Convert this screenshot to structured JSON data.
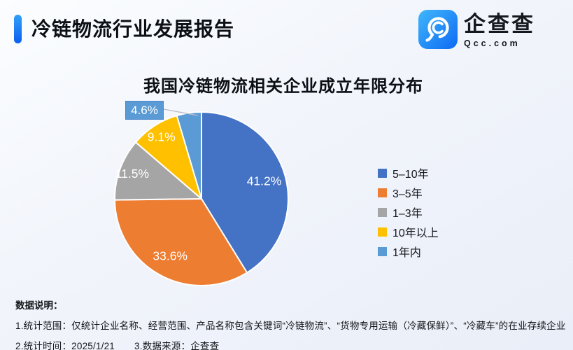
{
  "header": {
    "title": "冷链物流行业发展报告"
  },
  "logo": {
    "name": "企查查",
    "domain": "Qcc.com",
    "icon": "qcc-magnifier-icon",
    "brand_color": "#1275f5"
  },
  "chart_data": {
    "type": "pie",
    "title": "我国冷链物流相关企业成立年限分布",
    "legend_position": "right",
    "data_label_format": "{value}%",
    "start_angle_deg": 0,
    "direction": "clockwise",
    "slice_border_color": "#ffffff",
    "slices": [
      {
        "label": "5–10年",
        "value": 41.2,
        "color": "#4472C4"
      },
      {
        "label": "3–5年",
        "value": 33.6,
        "color": "#ED7D31"
      },
      {
        "label": "1–3年",
        "value": 11.5,
        "color": "#A5A5A5"
      },
      {
        "label": "10年以上",
        "value": 9.1,
        "color": "#FFC000"
      },
      {
        "label": "1年内",
        "value": 4.6,
        "color": "#5B9BD5",
        "callout": true
      }
    ]
  },
  "footer": {
    "heading": "数据说明：",
    "note1": "1.统计范围：仅统计企业名称、经营范围、产品名称包含关键词“冷链物流”、“货物专用运输（冷藏保鲜）”、“冷藏车”的在业存续企业",
    "note2": "2.统计时间：2025/1/21",
    "note3": "3.数据来源：企查查"
  }
}
